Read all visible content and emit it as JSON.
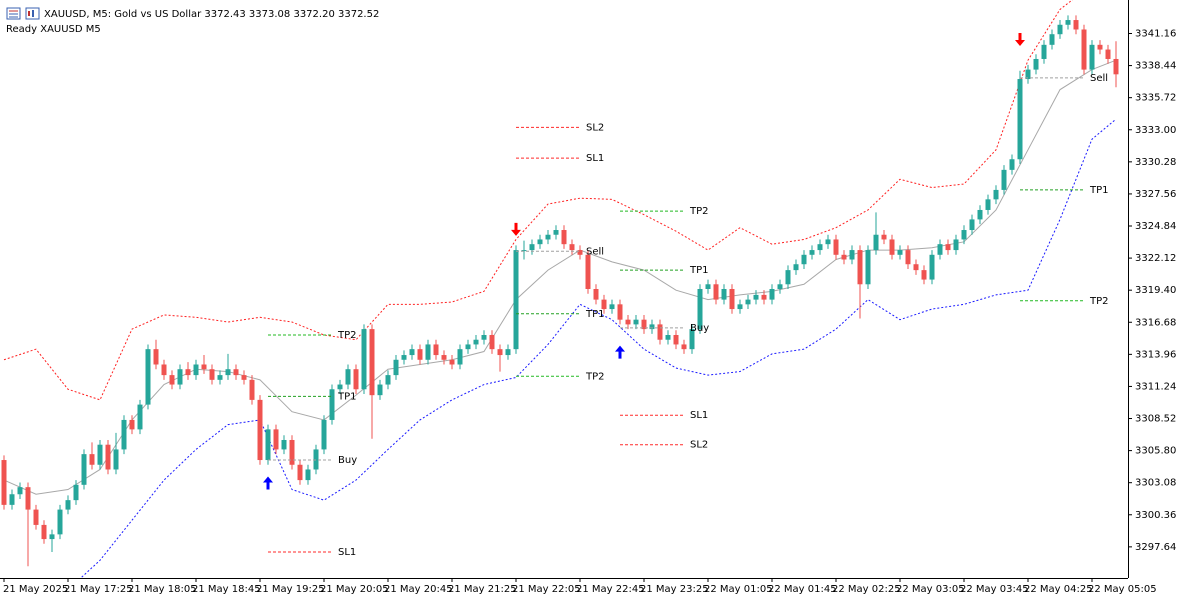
{
  "header": {
    "title": "XAUUSD, M5:  Gold vs US Dollar  3372.43 3373.08 3372.20 3372.52",
    "status": "Ready XAUUSD M5"
  },
  "chart_data": {
    "type": "candlestick",
    "ylim": [
      3295.0,
      3344.0
    ],
    "yticks": [
      3341.16,
      3338.44,
      3335.72,
      {
        "value": 3333.0,
        "label": "3333.00"
      },
      3330.28,
      3327.56,
      3324.84,
      3322.12,
      {
        "value": 3319.4,
        "label": "3319.40"
      },
      3316.68,
      3313.96,
      3311.24,
      3308.52,
      {
        "value": 3305.8,
        "label": "3305.80"
      },
      3303.08,
      3300.36,
      3297.64
    ],
    "xticks": [
      "21 May 2025",
      "21 May 17:25",
      "21 May 18:05",
      "21 May 18:45",
      "21 May 19:25",
      "21 May 20:05",
      "21 May 20:45",
      "21 May 21:25",
      "21 May 22:05",
      "21 May 22:45",
      "21 May 23:25",
      "22 May 01:05",
      "22 May 01:45",
      "22 May 02:25",
      "22 May 03:05",
      "22 May 03:45",
      "22 May 04:25",
      "22 May 05:05"
    ],
    "up_color": "#26a69a",
    "down_color": "#ef5350",
    "ohlc": [
      [
        3305.0,
        3305.4,
        3300.8,
        3301.2
      ],
      [
        3301.2,
        3302.5,
        3300.8,
        3302.1
      ],
      [
        3302.1,
        3303.1,
        3301.7,
        3302.7
      ],
      [
        3302.7,
        3303.1,
        3296.0,
        3300.8
      ],
      [
        3300.8,
        3301.2,
        3299.1,
        3299.5
      ],
      [
        3299.5,
        3299.9,
        3297.9,
        3298.3
      ],
      [
        3298.3,
        3299.1,
        3297.2,
        3298.7
      ],
      [
        3298.7,
        3301.2,
        3298.3,
        3300.8
      ],
      [
        3300.8,
        3302.0,
        3300.4,
        3301.6
      ],
      [
        3301.6,
        3303.3,
        3301.2,
        3302.9
      ],
      [
        3302.9,
        3305.9,
        3302.5,
        3305.5
      ],
      [
        3305.5,
        3306.5,
        3304.2,
        3304.6
      ],
      [
        3304.6,
        3306.7,
        3304.2,
        3306.3
      ],
      [
        3306.3,
        3306.7,
        3303.8,
        3304.2
      ],
      [
        3304.2,
        3307.3,
        3303.8,
        3305.9
      ],
      [
        3305.9,
        3308.8,
        3305.5,
        3308.4
      ],
      [
        3308.4,
        3308.8,
        3307.2,
        3307.6
      ],
      [
        3307.6,
        3310.1,
        3307.2,
        3309.7
      ],
      [
        3309.7,
        3314.8,
        3309.3,
        3314.4
      ],
      [
        3314.4,
        3315.2,
        3312.7,
        3313.1
      ],
      [
        3313.1,
        3313.5,
        3311.8,
        3312.2
      ],
      [
        3312.2,
        3312.6,
        3311.0,
        3311.4
      ],
      [
        3311.4,
        3313.1,
        3311.0,
        3312.7
      ],
      [
        3312.7,
        3313.3,
        3311.8,
        3312.2
      ],
      [
        3312.2,
        3313.5,
        3311.8,
        3313.1
      ],
      [
        3313.1,
        3313.9,
        3312.3,
        3312.7
      ],
      [
        3312.7,
        3313.1,
        3311.4,
        3311.8
      ],
      [
        3311.8,
        3312.6,
        3311.4,
        3312.2
      ],
      [
        3312.2,
        3314.0,
        3311.8,
        3312.7
      ],
      [
        3312.7,
        3313.1,
        3311.8,
        3312.2
      ],
      [
        3312.2,
        3312.6,
        3311.4,
        3311.8
      ],
      [
        3311.8,
        3312.2,
        3309.7,
        3310.1
      ],
      [
        3310.1,
        3310.5,
        3304.6,
        3305.0
      ],
      [
        3305.0,
        3308.0,
        3304.6,
        3307.6
      ],
      [
        3307.6,
        3308.0,
        3305.5,
        3305.9
      ],
      [
        3305.9,
        3307.1,
        3305.5,
        3306.7
      ],
      [
        3306.7,
        3307.1,
        3304.2,
        3304.6
      ],
      [
        3304.6,
        3305.0,
        3302.9,
        3303.3
      ],
      [
        3303.3,
        3304.6,
        3302.9,
        3304.2
      ],
      [
        3304.2,
        3306.3,
        3303.8,
        3305.9
      ],
      [
        3305.9,
        3308.8,
        3305.5,
        3308.4
      ],
      [
        3308.4,
        3311.4,
        3308.0,
        3311.0
      ],
      [
        3311.0,
        3311.8,
        3310.6,
        3311.4
      ],
      [
        3311.4,
        3313.1,
        3311.0,
        3312.7
      ],
      [
        3312.7,
        3313.1,
        3310.6,
        3311.0
      ],
      [
        3311.0,
        3316.5,
        3310.6,
        3316.1
      ],
      [
        3316.1,
        3316.5,
        3306.8,
        3310.5
      ],
      [
        3310.5,
        3311.8,
        3310.1,
        3311.4
      ],
      [
        3311.4,
        3312.6,
        3311.0,
        3312.2
      ],
      [
        3312.2,
        3313.9,
        3311.8,
        3313.5
      ],
      [
        3313.5,
        3314.3,
        3313.1,
        3313.9
      ],
      [
        3313.9,
        3314.8,
        3313.5,
        3314.4
      ],
      [
        3314.4,
        3314.8,
        3313.1,
        3313.5
      ],
      [
        3313.5,
        3315.2,
        3313.1,
        3314.8
      ],
      [
        3314.8,
        3315.2,
        3313.5,
        3313.9
      ],
      [
        3313.9,
        3314.3,
        3313.1,
        3313.5
      ],
      [
        3313.5,
        3313.9,
        3312.7,
        3313.1
      ],
      [
        3313.1,
        3314.8,
        3312.7,
        3314.4
      ],
      [
        3314.4,
        3315.2,
        3314.0,
        3314.8
      ],
      [
        3314.8,
        3315.6,
        3314.4,
        3315.2
      ],
      [
        3315.2,
        3316.0,
        3314.8,
        3315.6
      ],
      [
        3315.6,
        3316.0,
        3314.0,
        3314.4
      ],
      [
        3314.4,
        3314.8,
        3312.5,
        3313.9
      ],
      [
        3313.9,
        3314.8,
        3313.5,
        3314.4
      ],
      [
        3314.4,
        3323.2,
        3314.0,
        3322.8
      ],
      [
        3322.8,
        3323.6,
        3322.0,
        3322.8
      ],
      [
        3322.8,
        3323.7,
        3322.4,
        3323.3
      ],
      [
        3323.3,
        3324.1,
        3322.9,
        3323.7
      ],
      [
        3323.7,
        3324.5,
        3323.3,
        3324.1
      ],
      [
        3324.1,
        3324.9,
        3323.7,
        3324.5
      ],
      [
        3324.5,
        3324.9,
        3322.9,
        3323.3
      ],
      [
        3323.3,
        3323.7,
        3322.4,
        3322.8
      ],
      [
        3322.8,
        3323.2,
        3322.0,
        3322.4
      ],
      [
        3322.4,
        3322.8,
        3319.1,
        3319.5
      ],
      [
        3319.5,
        3319.9,
        3318.2,
        3318.6
      ],
      [
        3318.6,
        3319.0,
        3317.4,
        3317.8
      ],
      [
        3317.8,
        3318.6,
        3317.4,
        3318.2
      ],
      [
        3318.2,
        3318.6,
        3316.5,
        3316.9
      ],
      [
        3316.9,
        3317.3,
        3316.1,
        3316.5
      ],
      [
        3316.5,
        3317.3,
        3316.1,
        3316.9
      ],
      [
        3316.9,
        3317.3,
        3315.7,
        3316.1
      ],
      [
        3316.1,
        3316.9,
        3315.7,
        3316.5
      ],
      [
        3316.5,
        3316.9,
        3314.8,
        3315.2
      ],
      [
        3315.2,
        3316.0,
        3314.8,
        3315.6
      ],
      [
        3315.6,
        3316.0,
        3314.4,
        3314.8
      ],
      [
        3314.8,
        3315.2,
        3314.0,
        3314.4
      ],
      [
        3314.4,
        3316.5,
        3314.0,
        3316.1
      ],
      [
        3316.1,
        3319.9,
        3315.7,
        3319.5
      ],
      [
        3319.5,
        3320.3,
        3319.1,
        3319.9
      ],
      [
        3319.9,
        3320.3,
        3318.2,
        3318.6
      ],
      [
        3318.6,
        3319.9,
        3318.2,
        3319.5
      ],
      [
        3319.5,
        3319.9,
        3317.4,
        3317.8
      ],
      [
        3317.8,
        3318.6,
        3317.4,
        3318.2
      ],
      [
        3318.2,
        3319.0,
        3317.8,
        3318.6
      ],
      [
        3318.6,
        3319.4,
        3318.2,
        3319.0
      ],
      [
        3319.0,
        3319.4,
        3318.2,
        3318.6
      ],
      [
        3318.6,
        3319.9,
        3318.2,
        3319.5
      ],
      [
        3319.5,
        3320.3,
        3319.1,
        3319.9
      ],
      [
        3319.9,
        3321.5,
        3319.5,
        3321.1
      ],
      [
        3321.1,
        3322.0,
        3320.7,
        3321.6
      ],
      [
        3321.6,
        3322.8,
        3321.2,
        3322.4
      ],
      [
        3322.4,
        3323.2,
        3322.0,
        3322.8
      ],
      [
        3322.8,
        3323.7,
        3322.4,
        3323.3
      ],
      [
        3323.3,
        3324.1,
        3322.9,
        3323.7
      ],
      [
        3323.7,
        3324.1,
        3322.0,
        3322.4
      ],
      [
        3322.4,
        3322.8,
        3321.6,
        3322.0
      ],
      [
        3322.0,
        3323.2,
        3321.6,
        3322.8
      ],
      [
        3322.8,
        3323.2,
        3317.0,
        3319.9
      ],
      [
        3319.9,
        3323.2,
        3319.5,
        3322.8
      ],
      [
        3322.8,
        3326.0,
        3322.4,
        3324.1
      ],
      [
        3324.1,
        3324.5,
        3323.3,
        3323.7
      ],
      [
        3323.7,
        3324.1,
        3322.0,
        3322.4
      ],
      [
        3322.4,
        3323.2,
        3322.0,
        3322.8
      ],
      [
        3322.8,
        3323.2,
        3321.2,
        3321.6
      ],
      [
        3321.6,
        3322.0,
        3320.7,
        3321.1
      ],
      [
        3321.1,
        3321.5,
        3319.9,
        3320.3
      ],
      [
        3320.3,
        3322.8,
        3319.9,
        3322.4
      ],
      [
        3322.4,
        3323.7,
        3322.0,
        3323.3
      ],
      [
        3323.3,
        3323.7,
        3322.4,
        3322.8
      ],
      [
        3322.8,
        3324.1,
        3322.4,
        3323.7
      ],
      [
        3323.7,
        3324.9,
        3323.3,
        3324.5
      ],
      [
        3324.5,
        3325.8,
        3324.1,
        3325.4
      ],
      [
        3325.4,
        3326.6,
        3325.0,
        3326.2
      ],
      [
        3326.2,
        3327.5,
        3325.8,
        3327.1
      ],
      [
        3327.1,
        3328.3,
        3326.7,
        3327.9
      ],
      [
        3327.9,
        3330.0,
        3327.5,
        3329.6
      ],
      [
        3329.6,
        3330.9,
        3329.2,
        3330.5
      ],
      [
        3330.5,
        3338.0,
        3330.1,
        3337.3
      ],
      [
        3337.3,
        3338.5,
        3336.9,
        3338.1
      ],
      [
        3338.1,
        3339.4,
        3337.7,
        3339.0
      ],
      [
        3339.0,
        3340.6,
        3338.6,
        3340.2
      ],
      [
        3340.2,
        3341.5,
        3339.8,
        3341.1
      ],
      [
        3341.1,
        3342.3,
        3340.7,
        3341.9
      ],
      [
        3341.9,
        3342.7,
        3341.5,
        3342.3
      ],
      [
        3342.3,
        3342.7,
        3341.1,
        3341.5
      ],
      [
        3341.5,
        3341.9,
        3337.7,
        3338.1
      ],
      [
        3338.1,
        3340.6,
        3337.7,
        3340.2
      ],
      [
        3340.2,
        3340.6,
        3339.4,
        3339.8
      ],
      [
        3339.8,
        3340.2,
        3338.6,
        3339.0
      ],
      [
        3339.0,
        3340.5,
        3336.6,
        3337.7
      ]
    ],
    "bands": {
      "x": [
        0,
        4,
        8,
        12,
        16,
        20,
        24,
        28,
        32,
        36,
        40,
        44,
        48,
        52,
        56,
        60,
        64,
        68,
        72,
        76,
        80,
        84,
        88,
        92,
        96,
        100,
        104,
        108,
        112,
        116,
        120,
        124,
        128,
        132,
        136,
        139
      ],
      "series": [
        {
          "color": "#ff2020",
          "style": "dotted",
          "values": [
            3313.5,
            3314.4,
            3311.0,
            3310.1,
            3316.1,
            3317.3,
            3317.1,
            3316.7,
            3317.1,
            3316.7,
            3315.6,
            3315.2,
            3318.2,
            3318.2,
            3318.4,
            3319.3,
            3323.7,
            3326.7,
            3327.2,
            3327.1,
            3325.8,
            3324.4,
            3322.8,
            3324.7,
            3323.3,
            3323.7,
            3324.7,
            3326.2,
            3328.8,
            3328.1,
            3328.4,
            3331.3,
            3338.9,
            3343.2,
            3345.3,
            3345.7
          ]
        },
        {
          "color": "#a8a8a8",
          "style": "solid",
          "values": [
            3303.3,
            3302.1,
            3302.5,
            3304.2,
            3308.4,
            3311.4,
            3312.7,
            3312.5,
            3311.8,
            3309.1,
            3308.4,
            3310.5,
            3312.7,
            3313.1,
            3313.5,
            3314.2,
            3318.6,
            3321.1,
            3322.8,
            3321.8,
            3321.1,
            3319.4,
            3318.6,
            3319.0,
            3319.3,
            3319.9,
            3322.0,
            3322.8,
            3322.8,
            3323.0,
            3323.5,
            3326.2,
            3331.3,
            3336.4,
            3338.1,
            3338.9
          ]
        },
        {
          "color": "#1a1aff",
          "style": "dotted",
          "values": [
            3293.2,
            3293.2,
            3294.0,
            3296.5,
            3299.9,
            3303.3,
            3305.9,
            3308.0,
            3308.4,
            3302.5,
            3301.6,
            3303.3,
            3305.9,
            3308.4,
            3310.1,
            3311.4,
            3312.0,
            3314.8,
            3318.2,
            3316.9,
            3314.4,
            3312.8,
            3312.2,
            3312.5,
            3314.0,
            3314.4,
            3316.1,
            3318.6,
            3316.9,
            3317.8,
            3318.2,
            3319.0,
            3319.4,
            3325.4,
            3332.2,
            3333.9
          ]
        }
      ]
    },
    "trades": [
      {
        "signal": "buy",
        "index": 33,
        "end": 41,
        "arrow": 3303.6,
        "levels": [
          {
            "label": "TP2",
            "price": 3315.6,
            "color": "#22b922"
          },
          {
            "label": "TP1",
            "price": 3310.4,
            "color": "#22a022"
          },
          {
            "label": "Buy",
            "price": 3305.0,
            "color": "#a0a0a0"
          },
          {
            "label": "SL1",
            "price": 3297.2,
            "color": "#ff2a2a"
          }
        ]
      },
      {
        "signal": "sell",
        "index": 64,
        "end": 72,
        "arrow": 3324.0,
        "levels": [
          {
            "label": "SL2",
            "price": 3333.2,
            "color": "#ff2a2a"
          },
          {
            "label": "SL1",
            "price": 3330.6,
            "color": "#ff2a2a"
          },
          {
            "label": "Sell",
            "price": 3322.7,
            "color": "#a0a0a0"
          },
          {
            "label": "TP1",
            "price": 3317.4,
            "color": "#22a022"
          },
          {
            "label": "TP2",
            "price": 3312.1,
            "color": "#22b922"
          }
        ]
      },
      {
        "signal": "buy",
        "index": 77,
        "end": 85,
        "arrow": 3314.7,
        "levels": [
          {
            "label": "TP2",
            "price": 3326.1,
            "color": "#22b922"
          },
          {
            "label": "TP1",
            "price": 3321.1,
            "color": "#22a022"
          },
          {
            "label": "Buy",
            "price": 3316.2,
            "color": "#a0a0a0"
          },
          {
            "label": "SL1",
            "price": 3308.8,
            "color": "#ff2a2a"
          },
          {
            "label": "SL2",
            "price": 3306.3,
            "color": "#ff2a2a"
          }
        ]
      },
      {
        "signal": "sell",
        "index": 127,
        "end": 135,
        "arrow": 3340.1,
        "levels": [
          {
            "label": "Sell",
            "price": 3337.4,
            "color": "#a0a0a0"
          },
          {
            "label": "TP1",
            "price": 3327.9,
            "color": "#22a022"
          },
          {
            "label": "TP2",
            "price": 3318.5,
            "color": "#22b922"
          }
        ]
      }
    ]
  }
}
